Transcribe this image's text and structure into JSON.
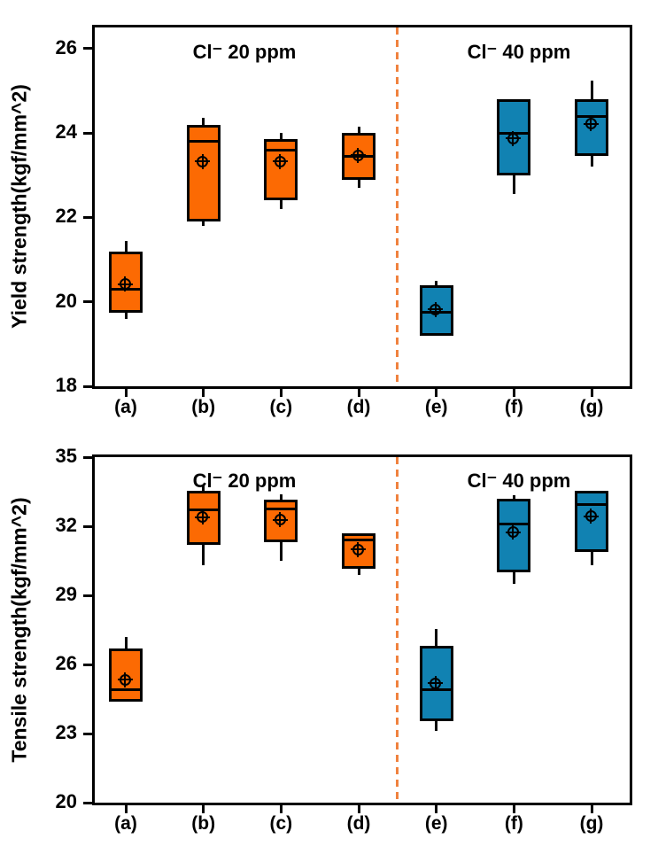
{
  "chart_data": [
    {
      "type": "box",
      "ylabel": "Yield strength(kgf/mm^2)",
      "xlabel": "",
      "ylim": [
        18,
        26.5
      ],
      "yticks": [
        18,
        20,
        22,
        24,
        26
      ],
      "categories": [
        "(a)",
        "(b)",
        "(c)",
        "(d)",
        "(e)",
        "(f)",
        "(g)"
      ],
      "annotations": [
        {
          "label": "Cl⁻ 20 ppm"
        },
        {
          "label": "Cl⁻ 40 ppm"
        }
      ],
      "groups": [
        {
          "label": "Cl⁻ 20 ppm",
          "color": "#FC6A03"
        },
        {
          "label": "Cl⁻ 40 ppm",
          "color": "#1182B2"
        }
      ],
      "separator": {
        "between": [
          "(d)",
          "(e)"
        ],
        "style": "dashed",
        "color": "#F0823F"
      },
      "boxes": [
        {
          "category": "(a)",
          "group": 0,
          "low": 19.6,
          "q1": 19.75,
          "median": 20.3,
          "mean": 20.4,
          "q3": 21.2,
          "high": 21.45
        },
        {
          "category": "(b)",
          "group": 0,
          "low": 21.8,
          "q1": 21.9,
          "median": 23.8,
          "mean": 23.3,
          "q3": 24.2,
          "high": 24.35
        },
        {
          "category": "(c)",
          "group": 0,
          "low": 22.2,
          "q1": 22.4,
          "median": 23.6,
          "mean": 23.3,
          "q3": 23.85,
          "high": 24.0
        },
        {
          "category": "(d)",
          "group": 0,
          "low": 22.7,
          "q1": 22.9,
          "median": 23.45,
          "mean": 23.45,
          "q3": 24.0,
          "high": 24.15
        },
        {
          "category": "(e)",
          "group": 1,
          "low": 19.2,
          "q1": 19.2,
          "median": 19.75,
          "mean": 19.8,
          "q3": 20.4,
          "high": 20.5
        },
        {
          "category": "(f)",
          "group": 1,
          "low": 22.55,
          "q1": 23.0,
          "median": 24.0,
          "mean": 23.85,
          "q3": 24.8,
          "high": 24.8
        },
        {
          "category": "(g)",
          "group": 1,
          "low": 23.2,
          "q1": 23.45,
          "median": 24.4,
          "mean": 24.2,
          "q3": 24.8,
          "high": 25.25
        }
      ]
    },
    {
      "type": "box",
      "ylabel": "Tensile strength(kgf/mm^2)",
      "xlabel": "",
      "ylim": [
        20,
        35
      ],
      "yticks": [
        20,
        23,
        26,
        29,
        32,
        35
      ],
      "categories": [
        "(a)",
        "(b)",
        "(c)",
        "(d)",
        "(e)",
        "(f)",
        "(g)"
      ],
      "annotations": [
        {
          "label": "Cl⁻ 20 ppm"
        },
        {
          "label": "Cl⁻ 40 ppm"
        }
      ],
      "groups": [
        {
          "label": "Cl⁻ 20 ppm",
          "color": "#FC6A03"
        },
        {
          "label": "Cl⁻ 40 ppm",
          "color": "#1182B2"
        }
      ],
      "separator": {
        "between": [
          "(d)",
          "(e)"
        ],
        "style": "dashed",
        "color": "#F0823F"
      },
      "boxes": [
        {
          "category": "(a)",
          "group": 0,
          "low": 24.4,
          "q1": 24.4,
          "median": 24.9,
          "mean": 25.3,
          "q3": 26.7,
          "high": 27.2
        },
        {
          "category": "(b)",
          "group": 0,
          "low": 30.3,
          "q1": 31.2,
          "median": 32.7,
          "mean": 32.35,
          "q3": 33.55,
          "high": 33.8
        },
        {
          "category": "(c)",
          "group": 0,
          "low": 30.5,
          "q1": 31.3,
          "median": 32.75,
          "mean": 32.25,
          "q3": 33.15,
          "high": 33.4
        },
        {
          "category": "(d)",
          "group": 0,
          "low": 29.9,
          "q1": 30.15,
          "median": 31.4,
          "mean": 30.95,
          "q3": 31.7,
          "high": 31.7
        },
        {
          "category": "(e)",
          "group": 1,
          "low": 23.1,
          "q1": 23.55,
          "median": 24.9,
          "mean": 25.15,
          "q3": 26.8,
          "high": 27.55
        },
        {
          "category": "(f)",
          "group": 1,
          "low": 29.5,
          "q1": 30.0,
          "median": 32.1,
          "mean": 31.7,
          "q3": 33.2,
          "high": 33.35
        },
        {
          "category": "(g)",
          "group": 1,
          "low": 30.3,
          "q1": 30.9,
          "median": 32.95,
          "mean": 32.4,
          "q3": 33.55,
          "high": 33.55
        }
      ]
    }
  ]
}
